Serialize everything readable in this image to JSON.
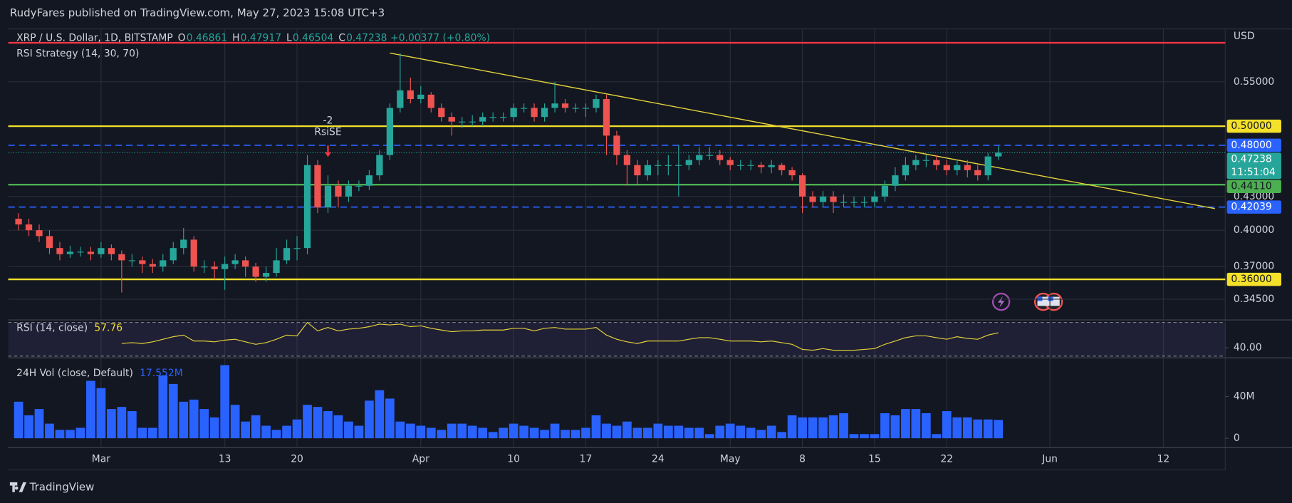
{
  "header": "RudyFares published on TradingView.com, May 27, 2023 15:08 UTC+3",
  "footer": "TradingView",
  "chart_data": [
    {
      "type": "candlestick",
      "title": "XRP / U.S. Dollar, 1D, BITSTAMP",
      "legend": [
        {
          "key": "O",
          "value": 0.46861
        },
        {
          "key": "H",
          "value": 0.47917
        },
        {
          "key": "L",
          "value": 0.46504
        },
        {
          "key": "C",
          "value": 0.47238
        }
      ],
      "change": "+0.00377 (+0.80%)",
      "indicator": "RSI Strategy (14, 30, 70)",
      "currency": "USD",
      "up_color": "#26a69a",
      "down_color": "#ef5350",
      "grid": true,
      "log_scale": true,
      "xlim": [
        "2023-02-20",
        "2023-06-18"
      ],
      "xticks": [
        {
          "value": "2023-03-01",
          "label": "Mar"
        },
        {
          "value": "2023-03-13",
          "label": "13"
        },
        {
          "value": "2023-03-20",
          "label": "20"
        },
        {
          "value": "2023-04-01",
          "label": "Apr"
        },
        {
          "value": "2023-04-10",
          "label": "10"
        },
        {
          "value": "2023-04-17",
          "label": "17"
        },
        {
          "value": "2023-04-24",
          "label": "24"
        },
        {
          "value": "2023-05-01",
          "label": "May"
        },
        {
          "value": "2023-05-08",
          "label": "8"
        },
        {
          "value": "2023-05-15",
          "label": "15"
        },
        {
          "value": "2023-05-22",
          "label": "22"
        },
        {
          "value": "2023-06-01",
          "label": "Jun"
        },
        {
          "value": "2023-06-12",
          "label": "12"
        }
      ],
      "ylim": [
        0.33,
        0.616
      ],
      "yticks": [
        {
          "value": 0.55,
          "label": "0.55000"
        },
        {
          "value": 0.43,
          "label": "0.43000"
        },
        {
          "value": 0.4,
          "label": "0.40000"
        },
        {
          "value": 0.37,
          "label": "0.37000"
        },
        {
          "value": 0.345,
          "label": "0.34500"
        }
      ],
      "levels": [
        {
          "value": 0.598,
          "color": "#f23645",
          "style": "solid"
        },
        {
          "value": 0.5,
          "label": "0.50000",
          "color": "#f5e12a",
          "style": "solid",
          "text_color": "#131722"
        },
        {
          "value": 0.48,
          "label": "0.48000",
          "color": "#2962ff",
          "style": "dashed",
          "text_color": "#ffffff"
        },
        {
          "value": 0.4411,
          "label": "0.44110",
          "color": "#4caf50",
          "style": "solid",
          "text_color": "#131722"
        },
        {
          "value": 0.42039,
          "label": "0.42039",
          "color": "#2962ff",
          "style": "dashed",
          "text_color": "#ffffff"
        },
        {
          "value": 0.36,
          "label": "0.36000",
          "color": "#f5e12a",
          "style": "solid",
          "text_color": "#131722"
        }
      ],
      "last": {
        "value": 0.47238,
        "label": "0.47238"
      },
      "countdown": "11:51:04",
      "trendline": {
        "x": [
          "2023-03-29",
          "2023-06-17"
        ],
        "y": [
          0.585,
          0.419
        ],
        "color": "#e5d33a"
      },
      "annotation": {
        "x": "2023-03-23",
        "y": 0.468,
        "text": "RsiSE",
        "qty": -2,
        "color": "#f23645"
      },
      "x": [
        "2023-02-21",
        "2023-02-22",
        "2023-02-23",
        "2023-02-24",
        "2023-02-25",
        "2023-02-26",
        "2023-02-27",
        "2023-02-28",
        "2023-03-01",
        "2023-03-02",
        "2023-03-03",
        "2023-03-04",
        "2023-03-05",
        "2023-03-06",
        "2023-03-07",
        "2023-03-08",
        "2023-03-09",
        "2023-03-10",
        "2023-03-11",
        "2023-03-12",
        "2023-03-13",
        "2023-03-14",
        "2023-03-15",
        "2023-03-16",
        "2023-03-17",
        "2023-03-18",
        "2023-03-19",
        "2023-03-20",
        "2023-03-21",
        "2023-03-22",
        "2023-03-23",
        "2023-03-24",
        "2023-03-25",
        "2023-03-26",
        "2023-03-27",
        "2023-03-28",
        "2023-03-29",
        "2023-03-30",
        "2023-03-31",
        "2023-04-01",
        "2023-04-02",
        "2023-04-03",
        "2023-04-04",
        "2023-04-05",
        "2023-04-06",
        "2023-04-07",
        "2023-04-08",
        "2023-04-09",
        "2023-04-10",
        "2023-04-11",
        "2023-04-12",
        "2023-04-13",
        "2023-04-14",
        "2023-04-15",
        "2023-04-16",
        "2023-04-17",
        "2023-04-18",
        "2023-04-19",
        "2023-04-20",
        "2023-04-21",
        "2023-04-22",
        "2023-04-23",
        "2023-04-24",
        "2023-04-25",
        "2023-04-26",
        "2023-04-27",
        "2023-04-28",
        "2023-04-29",
        "2023-04-30",
        "2023-05-01",
        "2023-05-02",
        "2023-05-03",
        "2023-05-04",
        "2023-05-05",
        "2023-05-06",
        "2023-05-07",
        "2023-05-08",
        "2023-05-09",
        "2023-05-10",
        "2023-05-11",
        "2023-05-12",
        "2023-05-13",
        "2023-05-14",
        "2023-05-15",
        "2023-05-16",
        "2023-05-17",
        "2023-05-18",
        "2023-05-19",
        "2023-05-20",
        "2023-05-21",
        "2023-05-22",
        "2023-05-23",
        "2023-05-24",
        "2023-05-25",
        "2023-05-26",
        "2023-05-27"
      ],
      "open": [
        0.41,
        0.405,
        0.4,
        0.395,
        0.385,
        0.38,
        0.382,
        0.382,
        0.38,
        0.385,
        0.38,
        0.375,
        0.375,
        0.372,
        0.37,
        0.375,
        0.385,
        0.392,
        0.37,
        0.37,
        0.368,
        0.372,
        0.375,
        0.37,
        0.362,
        0.365,
        0.375,
        0.385,
        0.385,
        0.46,
        0.42,
        0.44,
        0.43,
        0.44,
        0.44,
        0.45,
        0.47,
        0.52,
        0.54,
        0.53,
        0.535,
        0.52,
        0.51,
        0.505,
        0.505,
        0.505,
        0.51,
        0.51,
        0.51,
        0.52,
        0.52,
        0.51,
        0.52,
        0.525,
        0.52,
        0.52,
        0.52,
        0.53,
        0.49,
        0.47,
        0.46,
        0.45,
        0.46,
        0.46,
        0.46,
        0.46,
        0.465,
        0.47,
        0.47,
        0.465,
        0.46,
        0.46,
        0.46,
        0.458,
        0.46,
        0.455,
        0.45,
        0.43,
        0.425,
        0.43,
        0.425,
        0.425,
        0.425,
        0.425,
        0.43,
        0.44,
        0.45,
        0.46,
        0.465,
        0.465,
        0.46,
        0.455,
        0.46,
        0.455,
        0.45,
        0.46861
      ],
      "high": [
        0.415,
        0.41,
        0.405,
        0.4,
        0.39,
        0.387,
        0.386,
        0.386,
        0.39,
        0.388,
        0.383,
        0.38,
        0.378,
        0.376,
        0.38,
        0.39,
        0.402,
        0.395,
        0.375,
        0.374,
        0.378,
        0.38,
        0.378,
        0.373,
        0.37,
        0.385,
        0.392,
        0.395,
        0.47,
        0.465,
        0.45,
        0.445,
        0.445,
        0.445,
        0.455,
        0.475,
        0.525,
        0.585,
        0.555,
        0.545,
        0.538,
        0.525,
        0.515,
        0.51,
        0.512,
        0.515,
        0.515,
        0.515,
        0.525,
        0.525,
        0.525,
        0.525,
        0.55,
        0.53,
        0.525,
        0.525,
        0.535,
        0.535,
        0.495,
        0.475,
        0.465,
        0.465,
        0.465,
        0.47,
        0.48,
        0.47,
        0.478,
        0.478,
        0.475,
        0.468,
        0.465,
        0.465,
        0.463,
        0.465,
        0.462,
        0.458,
        0.452,
        0.435,
        0.435,
        0.435,
        0.432,
        0.43,
        0.43,
        0.435,
        0.445,
        0.458,
        0.468,
        0.47,
        0.47,
        0.47,
        0.465,
        0.465,
        0.465,
        0.46,
        0.472,
        0.47917
      ],
      "low": [
        0.4,
        0.395,
        0.39,
        0.38,
        0.375,
        0.377,
        0.378,
        0.375,
        0.377,
        0.375,
        0.35,
        0.37,
        0.365,
        0.365,
        0.366,
        0.372,
        0.38,
        0.366,
        0.365,
        0.36,
        0.352,
        0.368,
        0.362,
        0.358,
        0.358,
        0.362,
        0.372,
        0.375,
        0.38,
        0.415,
        0.415,
        0.42,
        0.425,
        0.435,
        0.436,
        0.445,
        0.465,
        0.515,
        0.525,
        0.525,
        0.515,
        0.505,
        0.49,
        0.498,
        0.5,
        0.5,
        0.505,
        0.505,
        0.505,
        0.515,
        0.505,
        0.505,
        0.515,
        0.515,
        0.515,
        0.51,
        0.515,
        0.47,
        0.46,
        0.44,
        0.44,
        0.445,
        0.45,
        0.45,
        0.43,
        0.455,
        0.46,
        0.465,
        0.46,
        0.455,
        0.455,
        0.455,
        0.452,
        0.452,
        0.45,
        0.445,
        0.415,
        0.42,
        0.42,
        0.415,
        0.42,
        0.42,
        0.42,
        0.42,
        0.425,
        0.435,
        0.445,
        0.455,
        0.458,
        0.455,
        0.45,
        0.45,
        0.448,
        0.445,
        0.445,
        0.46504
      ],
      "close": [
        0.405,
        0.4,
        0.395,
        0.385,
        0.38,
        0.382,
        0.382,
        0.38,
        0.385,
        0.38,
        0.375,
        0.375,
        0.372,
        0.37,
        0.375,
        0.385,
        0.392,
        0.37,
        0.37,
        0.368,
        0.372,
        0.375,
        0.37,
        0.362,
        0.365,
        0.375,
        0.385,
        0.385,
        0.46,
        0.42,
        0.44,
        0.43,
        0.44,
        0.44,
        0.45,
        0.47,
        0.52,
        0.54,
        0.53,
        0.535,
        0.52,
        0.51,
        0.505,
        0.505,
        0.505,
        0.51,
        0.51,
        0.51,
        0.52,
        0.52,
        0.51,
        0.52,
        0.525,
        0.52,
        0.52,
        0.52,
        0.53,
        0.49,
        0.47,
        0.46,
        0.45,
        0.46,
        0.46,
        0.46,
        0.46,
        0.465,
        0.47,
        0.47,
        0.465,
        0.46,
        0.46,
        0.46,
        0.458,
        0.46,
        0.455,
        0.45,
        0.43,
        0.425,
        0.43,
        0.425,
        0.425,
        0.425,
        0.425,
        0.43,
        0.44,
        0.45,
        0.46,
        0.465,
        0.465,
        0.46,
        0.455,
        0.46,
        0.455,
        0.45,
        0.46861,
        0.47238
      ]
    },
    {
      "type": "line",
      "title": "RSI (14, close)",
      "current": 57.76,
      "color": "#e5d33a",
      "bands": [
        30,
        70
      ],
      "ylim": [
        28,
        73
      ],
      "yticks": [
        {
          "value": 40,
          "label": "40.00"
        }
      ],
      "values": [
        null,
        null,
        null,
        null,
        null,
        null,
        null,
        null,
        null,
        null,
        45,
        46,
        45,
        47,
        50,
        53,
        55,
        48,
        48,
        47,
        49,
        50,
        47,
        44,
        46,
        50,
        55,
        54,
        70,
        60,
        64,
        60,
        62,
        63,
        65,
        68,
        67,
        68,
        65,
        66,
        63,
        61,
        59,
        60,
        60,
        61,
        61,
        61,
        63,
        63,
        60,
        63,
        64,
        62,
        62,
        62,
        64,
        55,
        50,
        47,
        45,
        48,
        48,
        48,
        48,
        50,
        52,
        52,
        50,
        48,
        48,
        48,
        47,
        48,
        46,
        44,
        38,
        37,
        39,
        37,
        37,
        37,
        38,
        39,
        44,
        48,
        52,
        54,
        54,
        52,
        50,
        53,
        51,
        50,
        55,
        57.76
      ]
    },
    {
      "type": "bar",
      "title": "24H Vol (close, Default)",
      "current": {
        "value": 17.552,
        "label": "17.552M"
      },
      "color": "#2962ff",
      "ylim": [
        -9,
        77
      ],
      "yticks": [
        {
          "value": 40,
          "label": "40M"
        },
        0
      ],
      "values": [
        35,
        22,
        28,
        14,
        8,
        8,
        10,
        55,
        48,
        28,
        30,
        26,
        10,
        10,
        60,
        52,
        35,
        37,
        28,
        20,
        70,
        32,
        16,
        22,
        12,
        8,
        12,
        18,
        32,
        30,
        26,
        22,
        16,
        12,
        36,
        46,
        38,
        16,
        14,
        12,
        10,
        8,
        14,
        14,
        12,
        10,
        6,
        10,
        14,
        12,
        10,
        8,
        14,
        8,
        8,
        10,
        22,
        14,
        12,
        16,
        10,
        10,
        14,
        12,
        12,
        10,
        10,
        4,
        12,
        14,
        12,
        10,
        8,
        12,
        6,
        22,
        20,
        20,
        20,
        22,
        24,
        4,
        4,
        4,
        24,
        22,
        28,
        28,
        24,
        4,
        26,
        20,
        20,
        18,
        18,
        17.552
      ]
    }
  ]
}
